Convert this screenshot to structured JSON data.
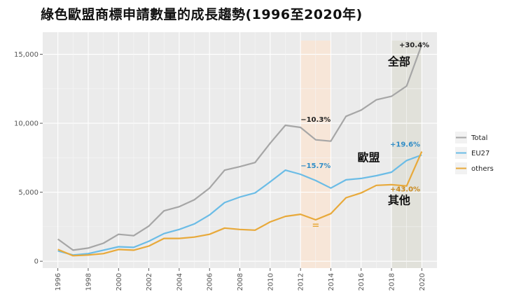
{
  "chart_data": {
    "type": "line",
    "title": "綠色歐盟商標申請數量的成長趨勢(1996至2020年)",
    "xlabel": "",
    "ylabel": "",
    "x": [
      1996,
      1997,
      1998,
      1999,
      2000,
      2001,
      2002,
      2003,
      2004,
      2005,
      2006,
      2007,
      2008,
      2009,
      2010,
      2011,
      2012,
      2013,
      2014,
      2015,
      2016,
      2017,
      2018,
      2019,
      2020
    ],
    "xlim": [
      1995,
      2021
    ],
    "ylim": [
      -500,
      16600
    ],
    "x_ticks": [
      1996,
      1998,
      2000,
      2002,
      2004,
      2006,
      2008,
      2010,
      2012,
      2014,
      2016,
      2018,
      2020
    ],
    "y_ticks": [
      0,
      5000,
      10000,
      15000
    ],
    "y_tick_labels": [
      "0",
      "5,000",
      "10,000",
      "15,000"
    ],
    "grid": true,
    "legend_position": "right",
    "series": [
      {
        "name": "Total",
        "color": "#a6a6a6",
        "values": [
          1600,
          800,
          950,
          1300,
          1950,
          1850,
          2550,
          3650,
          3950,
          4450,
          5300,
          6600,
          6850,
          7150,
          8550,
          9850,
          9700,
          8800,
          8700,
          10500,
          10950,
          11700,
          11950,
          12700,
          15700
        ]
      },
      {
        "name": "EU27",
        "color": "#6bbce6",
        "values": [
          750,
          450,
          550,
          800,
          1050,
          1000,
          1450,
          2000,
          2300,
          2700,
          3350,
          4250,
          4650,
          4950,
          5750,
          6600,
          6300,
          5850,
          5300,
          5900,
          6000,
          6200,
          6450,
          7300,
          7700
        ]
      },
      {
        "name": "others",
        "color": "#e8a93a",
        "values": [
          850,
          400,
          450,
          550,
          850,
          800,
          1100,
          1650,
          1650,
          1750,
          1950,
          2400,
          2300,
          2250,
          2850,
          3250,
          3400,
          3000,
          3450,
          4600,
          4950,
          5500,
          5550,
          5450,
          7950
        ]
      }
    ],
    "highlight_regions": [
      {
        "x_start": 2012,
        "x_end": 2014,
        "color": "#f8e5d6"
      },
      {
        "x_start": 2018,
        "x_end": 2020,
        "color": "#e0e0d8"
      }
    ],
    "annotations": [
      {
        "text": "+30.4%",
        "x": 2019.5,
        "y": 15500,
        "color": "#222222"
      },
      {
        "text": "−10.3%",
        "x": 2013,
        "y": 10100,
        "color": "#222222"
      },
      {
        "text": "−15.7%",
        "x": 2013,
        "y": 6750,
        "color": "#2f8cc6"
      },
      {
        "text": "+19.6%",
        "x": 2018.9,
        "y": 8300,
        "color": "#2f8cc6"
      },
      {
        "text": "+43.0%",
        "x": 2018.9,
        "y": 5050,
        "color": "#c98a1f"
      },
      {
        "text": "=",
        "x": 2013,
        "y": 2400,
        "color": "#e8a93a"
      }
    ],
    "region_labels": [
      {
        "text": "全部",
        "x": 2018.5,
        "y": 14200
      },
      {
        "text": "歐盟",
        "x": 2016.5,
        "y": 7250
      },
      {
        "text": "其他",
        "x": 2018.5,
        "y": 4150
      }
    ]
  }
}
